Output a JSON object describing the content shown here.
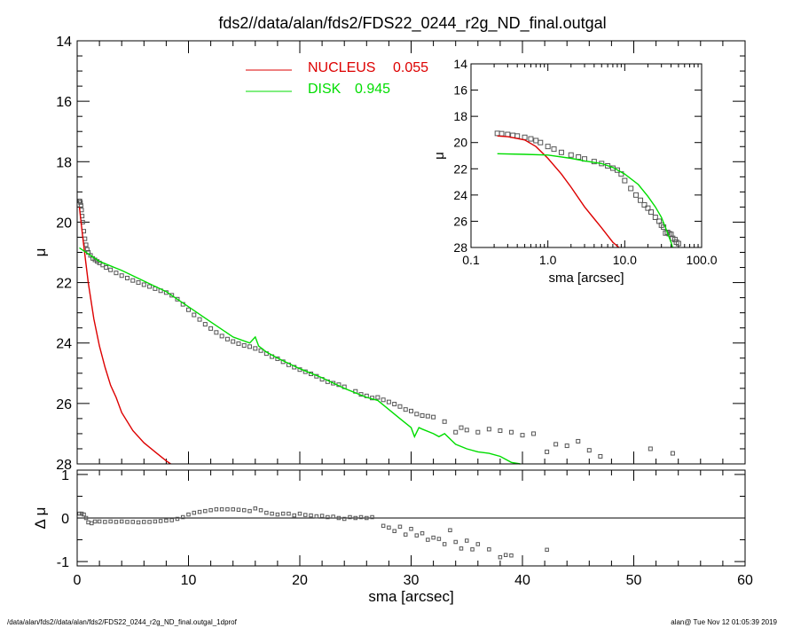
{
  "page": {
    "title": "fds2//data/alan/fds2/FDS22_0244_r2g_ND_final.outgal",
    "footer_left": "/data/alan/fds2//data/alan/fds2/FDS22_0244_r2g_ND_final.outgal_1dprof",
    "footer_right": "alan@  Tue Nov 12 01:05:39 2019"
  },
  "colors": {
    "nucleus": "#dd0000",
    "disk": "#00dd00",
    "data": "#555555",
    "axis": "#000000"
  },
  "chart_data": [
    {
      "type": "scatter",
      "panel": "main",
      "ylabel": "μ",
      "xlim": [
        0,
        60
      ],
      "ylim": [
        28,
        14
      ],
      "y_inverted": true,
      "yticks": [
        "14",
        "16",
        "18",
        "20",
        "22",
        "24",
        "26",
        "28"
      ],
      "legend": {
        "placement": "top-center",
        "entries": [
          {
            "label": "NUCLEUS",
            "value": "0.055",
            "color": "#dd0000"
          },
          {
            "label": "DISK",
            "value": "0.945",
            "color": "#00dd00"
          }
        ]
      },
      "series": [
        {
          "name": "NUCLEUS",
          "kind": "line",
          "color": "#dd0000",
          "x": [
            0.2,
            0.5,
            1,
            1.5,
            2,
            2.5,
            3,
            3.5,
            4,
            5,
            6,
            7,
            8,
            8.4
          ],
          "y": [
            19.5,
            20.5,
            22.0,
            23.2,
            24.1,
            24.8,
            25.4,
            25.8,
            26.3,
            26.9,
            27.3,
            27.6,
            27.9,
            28.0
          ]
        },
        {
          "name": "DISK",
          "kind": "line",
          "color": "#00dd00",
          "x": [
            0.2,
            2,
            4,
            6,
            8,
            10,
            12,
            14,
            15.5,
            16,
            16.3,
            17,
            18,
            20,
            22,
            24,
            26,
            27,
            28,
            29,
            30,
            30.3,
            30.7,
            31,
            32,
            32.5,
            33,
            34,
            35,
            36,
            37,
            38,
            39,
            39.8
          ],
          "y": [
            20.85,
            21.3,
            21.6,
            21.95,
            22.3,
            22.8,
            23.3,
            23.8,
            24.0,
            23.8,
            24.1,
            24.3,
            24.5,
            24.85,
            25.15,
            25.5,
            25.8,
            25.9,
            26.2,
            26.5,
            26.8,
            27.1,
            26.8,
            26.85,
            27.0,
            27.1,
            27.0,
            27.35,
            27.5,
            27.6,
            27.65,
            27.75,
            27.95,
            28.0
          ]
        },
        {
          "name": "data",
          "kind": "points",
          "x": [
            0.2,
            0.25,
            0.3,
            0.35,
            0.4,
            0.45,
            0.5,
            0.6,
            0.7,
            0.8,
            0.9,
            1.0,
            1.2,
            1.4,
            1.6,
            1.8,
            2.0,
            2.3,
            2.6,
            3.0,
            3.5,
            4.0,
            4.5,
            5.0,
            5.5,
            6.0,
            6.5,
            7.0,
            7.5,
            8.0,
            8.5,
            9.0,
            9.5,
            10.0,
            10.5,
            11.0,
            11.5,
            12.0,
            12.5,
            13.0,
            13.5,
            14.0,
            14.5,
            15.0,
            15.5,
            16.0,
            16.5,
            17.0,
            17.5,
            18.0,
            18.5,
            19.0,
            19.5,
            20.0,
            20.5,
            21.0,
            21.5,
            22.0,
            22.5,
            23.0,
            23.5,
            24.0,
            25.0,
            25.5,
            26.0,
            26.5,
            27.0,
            27.5,
            28.0,
            28.5,
            29.0,
            29.5,
            30.0,
            30.5,
            31.0,
            31.5,
            32.0,
            33.0,
            34.0,
            34.5,
            35.0,
            36.0,
            37.0,
            38.0,
            39.0,
            40.0,
            41.0,
            42.2,
            43.0,
            44.0,
            45.0,
            46.0,
            47.0,
            51.5,
            53.5
          ],
          "y": [
            19.3,
            19.3,
            19.35,
            19.45,
            19.6,
            19.8,
            20.0,
            20.3,
            20.55,
            20.75,
            20.9,
            21.0,
            21.1,
            21.2,
            21.25,
            21.3,
            21.35,
            21.42,
            21.5,
            21.58,
            21.68,
            21.77,
            21.85,
            21.93,
            22.0,
            22.07,
            22.13,
            22.2,
            22.27,
            22.33,
            22.42,
            22.55,
            22.72,
            22.9,
            23.07,
            23.22,
            23.38,
            23.52,
            23.65,
            23.77,
            23.87,
            23.95,
            24.02,
            24.08,
            24.12,
            24.18,
            24.25,
            24.35,
            24.45,
            24.52,
            24.62,
            24.72,
            24.8,
            24.88,
            24.95,
            25.02,
            25.1,
            25.2,
            25.28,
            25.33,
            25.38,
            25.45,
            25.6,
            25.7,
            25.75,
            25.82,
            25.8,
            25.88,
            25.95,
            26.02,
            26.1,
            26.2,
            26.25,
            26.35,
            26.4,
            26.42,
            26.45,
            26.6,
            26.95,
            26.8,
            26.88,
            26.95,
            26.85,
            26.9,
            26.95,
            27.05,
            27.0,
            27.6,
            27.35,
            27.4,
            27.25,
            27.55,
            27.75,
            27.5,
            27.65
          ]
        }
      ]
    },
    {
      "type": "scatter",
      "panel": "inset",
      "xlabel": "sma [arcsec]",
      "ylabel": "μ",
      "xscale": "log",
      "xlim": [
        0.1,
        100.0
      ],
      "ylim": [
        28,
        14
      ],
      "y_inverted": true,
      "xticks": [
        "0.1",
        "1.0",
        "10.0",
        "100.0"
      ],
      "yticks": [
        "14",
        "16",
        "18",
        "20",
        "22",
        "24",
        "26",
        "28"
      ],
      "series": [
        {
          "name": "NUCLEUS",
          "kind": "line",
          "color": "#dd0000",
          "x": [
            0.22,
            0.3,
            0.5,
            0.7,
            1.0,
            1.5,
            2.0,
            3.0,
            4.0,
            5.0,
            6.0,
            7.0,
            8.4
          ],
          "y": [
            19.5,
            19.55,
            19.8,
            20.3,
            21.2,
            22.4,
            23.4,
            24.9,
            25.8,
            26.5,
            27.1,
            27.6,
            28.0
          ]
        },
        {
          "name": "DISK",
          "kind": "line",
          "color": "#00dd00",
          "x": [
            0.22,
            0.5,
            1.0,
            2.0,
            3.0,
            5.0,
            7.0,
            10.0,
            15.0,
            20.0,
            25.0,
            30.0,
            35.0,
            40.0,
            42.0
          ],
          "y": [
            20.85,
            20.9,
            20.95,
            21.2,
            21.4,
            21.6,
            21.9,
            22.4,
            23.2,
            24.1,
            24.9,
            25.7,
            26.7,
            27.6,
            28.0
          ]
        },
        {
          "name": "data",
          "kind": "points",
          "x": [
            0.22,
            0.25,
            0.3,
            0.35,
            0.4,
            0.5,
            0.6,
            0.7,
            0.8,
            1.0,
            1.2,
            1.5,
            2.0,
            2.5,
            3.0,
            4.0,
            5.0,
            6.0,
            7.0,
            8.0,
            9.0,
            10.0,
            12.0,
            14.0,
            16.0,
            18.0,
            20.0,
            22.0,
            25.0,
            28.0,
            30.0,
            32.0,
            34.0,
            36.0,
            38.0,
            40.0,
            42.0,
            45.0,
            47.0,
            50.0
          ],
          "y": [
            19.3,
            19.32,
            19.38,
            19.45,
            19.5,
            19.6,
            19.72,
            19.85,
            20.0,
            20.3,
            20.5,
            20.75,
            20.95,
            21.1,
            21.25,
            21.45,
            21.6,
            21.78,
            21.95,
            22.1,
            22.4,
            22.9,
            23.5,
            24.0,
            24.4,
            24.75,
            25.0,
            25.3,
            25.7,
            26.0,
            26.3,
            26.45,
            26.9,
            26.85,
            26.95,
            27.0,
            27.3,
            27.4,
            27.6,
            27.7
          ]
        }
      ]
    },
    {
      "type": "scatter",
      "panel": "residual",
      "xlabel": "sma [arcsec]",
      "ylabel": "Δ μ",
      "xlim": [
        0,
        60
      ],
      "ylim": [
        -1.1,
        1.1
      ],
      "xticks": [
        "0",
        "10",
        "20",
        "30",
        "40",
        "50",
        "60"
      ],
      "yticks": [
        "1",
        "0",
        "-1"
      ],
      "zero_line": true,
      "series": [
        {
          "name": "residual",
          "kind": "points",
          "x": [
            0.2,
            0.4,
            0.6,
            0.8,
            1.0,
            1.3,
            1.6,
            2.0,
            2.5,
            3.0,
            3.5,
            4.0,
            4.5,
            5.0,
            5.5,
            6.0,
            6.5,
            7.0,
            7.5,
            8.0,
            8.5,
            9.0,
            9.5,
            10.0,
            10.5,
            11.0,
            11.5,
            12.0,
            12.5,
            13.0,
            13.5,
            14.0,
            14.5,
            15.0,
            15.5,
            16.0,
            16.5,
            17.0,
            17.5,
            18.0,
            18.5,
            19.0,
            19.5,
            20.0,
            20.5,
            21.0,
            21.5,
            22.0,
            22.5,
            23.0,
            23.5,
            24.0,
            24.5,
            25.0,
            25.5,
            26.0,
            26.5,
            27.5,
            28.0,
            28.5,
            29.0,
            29.5,
            30.0,
            30.5,
            31.0,
            31.5,
            32.0,
            32.5,
            33.0,
            33.5,
            34.0,
            34.5,
            35.0,
            35.5,
            36.0,
            37.0,
            38.0,
            38.5,
            39.0,
            42.2
          ],
          "y": [
            0.1,
            0.1,
            0.08,
            0.0,
            -0.1,
            -0.12,
            -0.08,
            -0.08,
            -0.09,
            -0.08,
            -0.09,
            -0.08,
            -0.09,
            -0.09,
            -0.1,
            -0.09,
            -0.09,
            -0.08,
            -0.07,
            -0.06,
            -0.05,
            -0.02,
            0.02,
            0.08,
            0.12,
            0.14,
            0.16,
            0.18,
            0.2,
            0.2,
            0.2,
            0.2,
            0.19,
            0.18,
            0.16,
            0.22,
            0.18,
            0.12,
            0.1,
            0.08,
            0.1,
            0.1,
            0.06,
            0.1,
            0.07,
            0.06,
            0.04,
            0.05,
            0.02,
            0.03,
            0.0,
            -0.02,
            0.02,
            0.0,
            0.02,
            0.0,
            0.02,
            -0.18,
            -0.22,
            -0.3,
            -0.2,
            -0.38,
            -0.25,
            -0.4,
            -0.35,
            -0.5,
            -0.45,
            -0.48,
            -0.6,
            -0.28,
            -0.55,
            -0.7,
            -0.52,
            -0.72,
            -0.6,
            -0.72,
            -0.9,
            -0.85,
            -0.86,
            -0.73
          ]
        }
      ]
    }
  ]
}
